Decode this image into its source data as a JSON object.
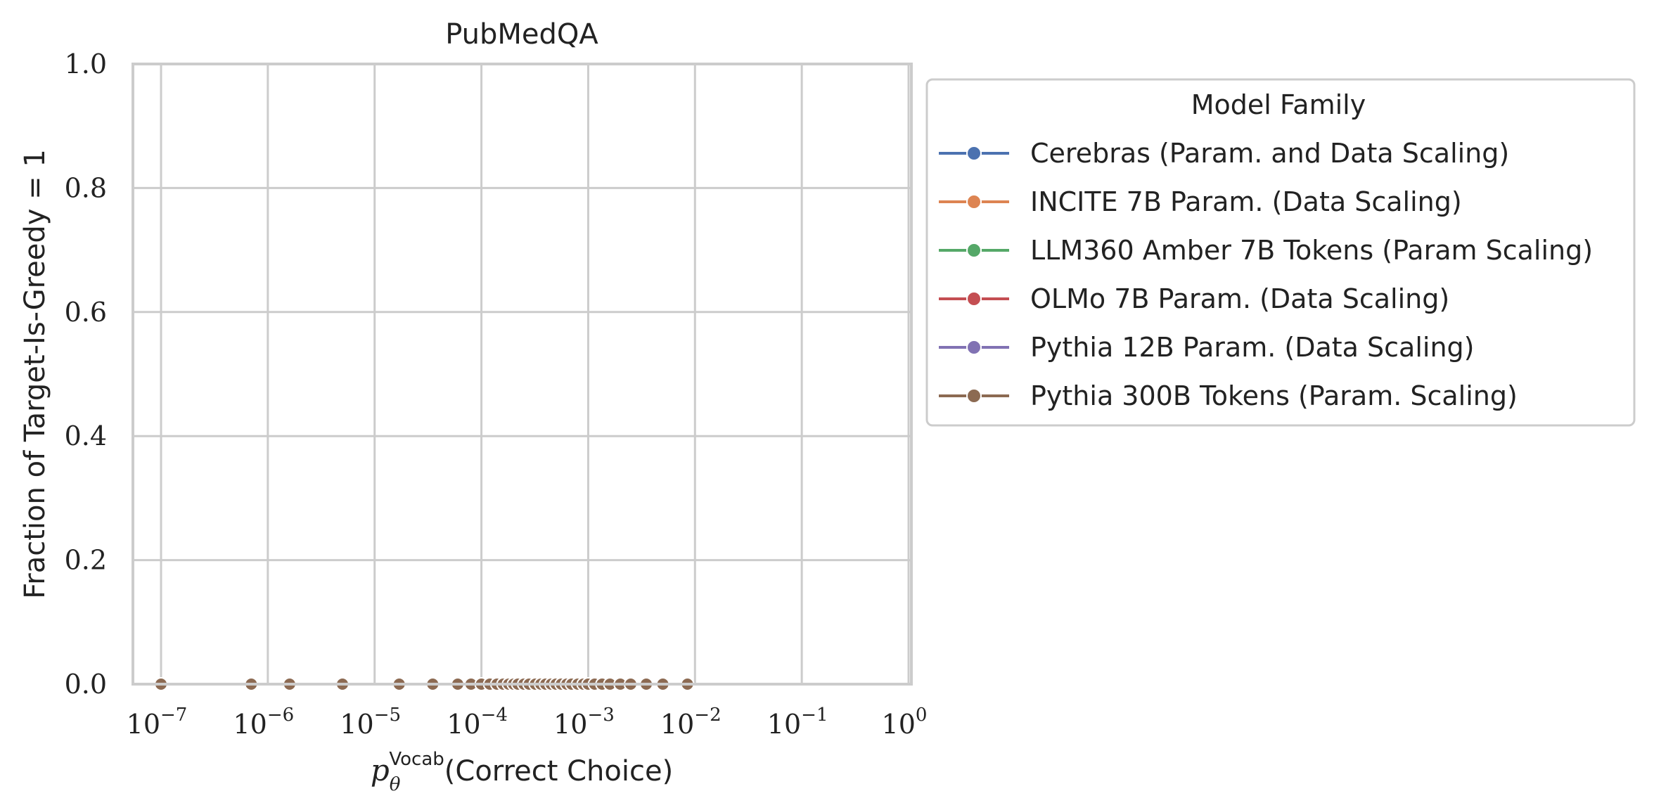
{
  "chart_data": {
    "type": "line",
    "title": "PubMedQA",
    "xlabel": {
      "symbol": "p",
      "subscript": "θ",
      "superscript": "Vocab",
      "text": "(Correct Choice)"
    },
    "ylabel": "Fraction of Target-Is-Greedy = 1",
    "x_scale": "log",
    "xlim": [
      1e-07,
      1
    ],
    "ylim": [
      0,
      1
    ],
    "x_ticks": [
      {
        "base": "10",
        "exp": "−7"
      },
      {
        "base": "10",
        "exp": "−6"
      },
      {
        "base": "10",
        "exp": "−5"
      },
      {
        "base": "10",
        "exp": "−4"
      },
      {
        "base": "10",
        "exp": "−3"
      },
      {
        "base": "10",
        "exp": "−2"
      },
      {
        "base": "10",
        "exp": "−1"
      },
      {
        "base": "10",
        "exp": "0"
      }
    ],
    "y_ticks": [
      "0.0",
      "0.2",
      "0.4",
      "0.6",
      "0.8",
      "1.0"
    ],
    "grid": true,
    "legend": {
      "title": "Model Family",
      "placement": "outside right, top"
    },
    "series": [
      {
        "name": "Cerebras (Param. and Data Scaling)",
        "color": "#4c72b0",
        "x": [],
        "y": []
      },
      {
        "name": "INCITE 7B Param. (Data Scaling)",
        "color": "#dd8452",
        "x": [],
        "y": []
      },
      {
        "name": "LLM360 Amber 7B Tokens (Param Scaling)",
        "color": "#55a868",
        "x": [],
        "y": []
      },
      {
        "name": "OLMo 7B Param. (Data Scaling)",
        "color": "#c44e52",
        "x": [],
        "y": []
      },
      {
        "name": "Pythia 12B Param. (Data Scaling)",
        "color": "#8172b3",
        "x": [],
        "y": []
      },
      {
        "name": "Pythia 300B Tokens (Param. Scaling)",
        "color": "#8c6a52",
        "x": [
          1e-07,
          7e-07,
          1.6e-06,
          5e-06,
          1.7e-05,
          3.5e-05,
          6e-05,
          8e-05,
          0.0001,
          0.00012,
          0.00014,
          0.00016,
          0.00018,
          0.0002,
          0.00022,
          0.00025,
          0.00028,
          0.00032,
          0.00036,
          0.0004,
          0.00045,
          0.0005,
          0.00056,
          0.00063,
          0.0007,
          0.0008,
          0.0009,
          0.001,
          0.00115,
          0.00135,
          0.0016,
          0.002,
          0.0025,
          0.0035,
          0.005,
          0.0085
        ],
        "y": [
          0,
          0,
          0,
          0,
          0,
          0,
          0,
          0,
          0,
          0,
          0,
          0,
          0,
          0,
          0,
          0,
          0,
          0,
          0,
          0,
          0,
          0,
          0,
          0,
          0,
          0,
          0,
          0,
          0,
          0,
          0,
          0,
          0,
          0,
          0,
          0
        ]
      }
    ]
  }
}
